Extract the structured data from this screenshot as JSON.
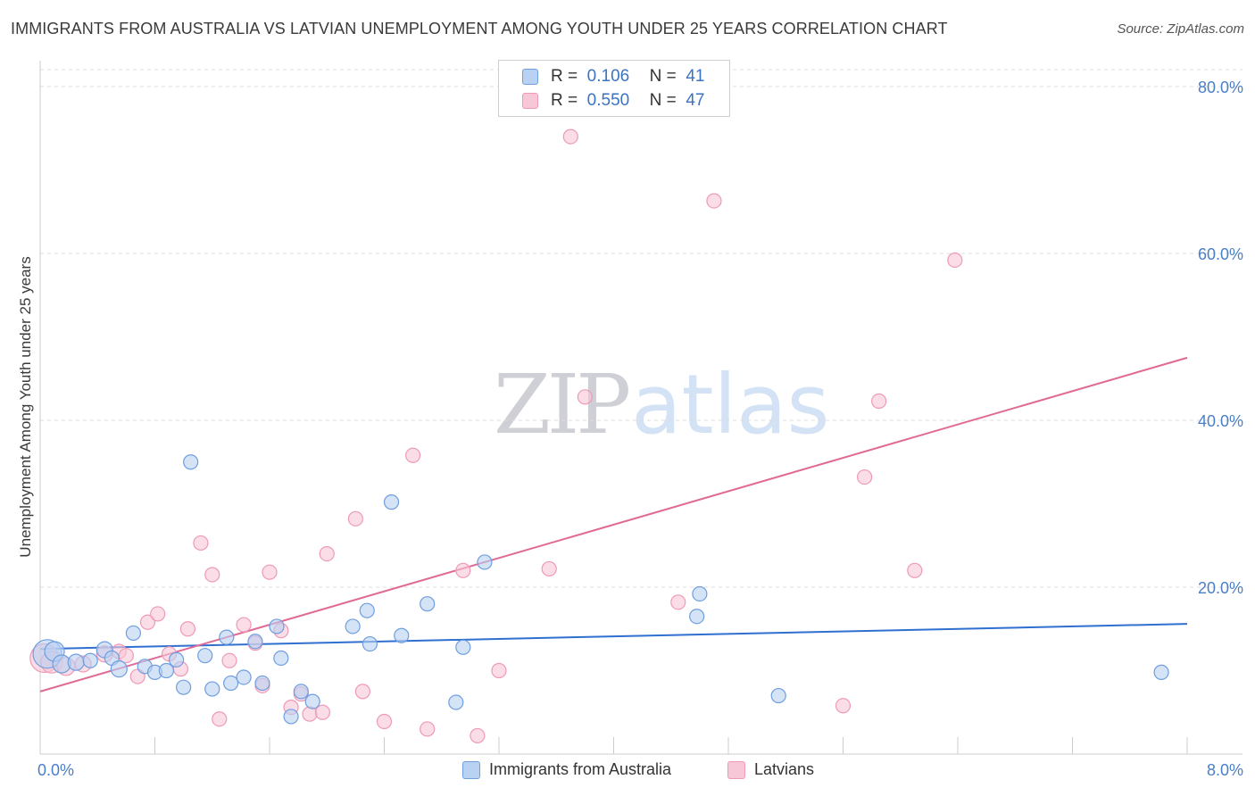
{
  "title": "IMMIGRANTS FROM AUSTRALIA VS LATVIAN UNEMPLOYMENT AMONG YOUTH UNDER 25 YEARS CORRELATION CHART",
  "source": "Source: ZipAtlas.com",
  "watermark": {
    "zip": "ZIP",
    "atlas": "atlas"
  },
  "legend": {
    "rows": [
      {
        "r_label": "R =",
        "r_value": "0.106",
        "n_label": "N =",
        "n_value": "41"
      },
      {
        "r_label": "R =",
        "r_value": "0.550",
        "n_label": "N =",
        "n_value": "47"
      }
    ]
  },
  "colors": {
    "blue_fill": "#b9d1f2",
    "blue_stroke": "#6e9ee0",
    "blue_line": "#2f6fd0",
    "pink_fill": "#f8c7d7",
    "pink_stroke": "#ee9ab6",
    "pink_line": "#e06a95",
    "grid": "#dcdcdc",
    "axis": "#cccccc"
  },
  "chart_data": {
    "type": "scatter",
    "xlabel": "",
    "ylabel": "Unemployment Among Youth under 25 years",
    "xlim": [
      0,
      8
    ],
    "ylim": [
      0,
      80
    ],
    "x_tick_labels": [
      "0.0%",
      "8.0%"
    ],
    "y_tick_labels": [
      "20.0%",
      "40.0%",
      "60.0%",
      "80.0%"
    ],
    "y_ticks": [
      20,
      40,
      60,
      80
    ],
    "x_minor_ticks": [
      0,
      0.8,
      1.6,
      2.4,
      3.2,
      4.0,
      4.8,
      5.6,
      6.4,
      7.2,
      8.0
    ],
    "legend_position": "top-center",
    "series": [
      {
        "name": "Immigrants from Australia",
        "color": "blue",
        "r": 0.106,
        "n": 41,
        "trend": [
          [
            0,
            12.6
          ],
          [
            8,
            15.6
          ]
        ],
        "points": [
          [
            0.05,
            12.0,
            16
          ],
          [
            0.1,
            12.3,
            11
          ],
          [
            0.15,
            10.8,
            10
          ],
          [
            0.25,
            11.0,
            9
          ],
          [
            0.35,
            11.2,
            8
          ],
          [
            0.45,
            12.5,
            9
          ],
          [
            0.5,
            11.5,
            8
          ],
          [
            0.55,
            10.2,
            9
          ],
          [
            0.65,
            14.5,
            8
          ],
          [
            0.73,
            10.5,
            8
          ],
          [
            0.8,
            9.8,
            8
          ],
          [
            0.88,
            10.0,
            8
          ],
          [
            0.95,
            11.3,
            8
          ],
          [
            1.0,
            8.0,
            8
          ],
          [
            1.05,
            35.0,
            8
          ],
          [
            1.15,
            11.8,
            8
          ],
          [
            1.2,
            7.8,
            8
          ],
          [
            1.3,
            14.0,
            8
          ],
          [
            1.33,
            8.5,
            8
          ],
          [
            1.42,
            9.2,
            8
          ],
          [
            1.5,
            13.5,
            8
          ],
          [
            1.55,
            8.5,
            8
          ],
          [
            1.65,
            15.3,
            8
          ],
          [
            1.68,
            11.5,
            8
          ],
          [
            1.75,
            4.5,
            8
          ],
          [
            1.82,
            7.5,
            8
          ],
          [
            1.9,
            6.3,
            8
          ],
          [
            2.18,
            15.3,
            8
          ],
          [
            2.28,
            17.2,
            8
          ],
          [
            2.3,
            13.2,
            8
          ],
          [
            2.45,
            30.2,
            8
          ],
          [
            2.52,
            14.2,
            8
          ],
          [
            2.7,
            18.0,
            8
          ],
          [
            2.9,
            6.2,
            8
          ],
          [
            2.95,
            12.8,
            8
          ],
          [
            3.1,
            23.0,
            8
          ],
          [
            4.58,
            16.5,
            8
          ],
          [
            4.6,
            19.2,
            8
          ],
          [
            5.15,
            7.0,
            8
          ],
          [
            7.82,
            9.8,
            8
          ]
        ]
      },
      {
        "name": "Latvians",
        "color": "pink",
        "r": 0.55,
        "n": 47,
        "trend": [
          [
            0,
            7.5
          ],
          [
            8,
            47.5
          ]
        ],
        "points": [
          [
            0.03,
            11.5,
            16
          ],
          [
            0.08,
            11.0,
            12
          ],
          [
            0.18,
            10.5,
            10
          ],
          [
            0.3,
            10.8,
            9
          ],
          [
            0.45,
            12.0,
            9
          ],
          [
            0.55,
            12.3,
            8
          ],
          [
            0.6,
            11.8,
            8
          ],
          [
            0.68,
            9.3,
            8
          ],
          [
            0.75,
            15.8,
            8
          ],
          [
            0.82,
            16.8,
            8
          ],
          [
            0.9,
            12.0,
            8
          ],
          [
            0.98,
            10.2,
            8
          ],
          [
            1.03,
            15.0,
            8
          ],
          [
            1.12,
            25.3,
            8
          ],
          [
            1.2,
            21.5,
            8
          ],
          [
            1.25,
            4.2,
            8
          ],
          [
            1.32,
            11.2,
            8
          ],
          [
            1.42,
            15.5,
            8
          ],
          [
            1.5,
            13.3,
            8
          ],
          [
            1.55,
            8.2,
            8
          ],
          [
            1.6,
            21.8,
            8
          ],
          [
            1.68,
            14.8,
            8
          ],
          [
            1.75,
            5.6,
            8
          ],
          [
            1.82,
            7.2,
            8
          ],
          [
            1.88,
            4.8,
            8
          ],
          [
            1.97,
            5.0,
            8
          ],
          [
            2.0,
            24.0,
            8
          ],
          [
            2.2,
            28.2,
            8
          ],
          [
            2.25,
            7.5,
            8
          ],
          [
            2.4,
            3.9,
            8
          ],
          [
            2.6,
            35.8,
            8
          ],
          [
            2.7,
            3.0,
            8
          ],
          [
            2.95,
            22.0,
            8
          ],
          [
            3.05,
            2.2,
            8
          ],
          [
            3.2,
            10.0,
            8
          ],
          [
            3.55,
            22.2,
            8
          ],
          [
            3.7,
            74.0,
            8
          ],
          [
            3.8,
            42.8,
            8
          ],
          [
            4.45,
            18.2,
            8
          ],
          [
            4.7,
            66.3,
            8
          ],
          [
            5.6,
            5.8,
            8
          ],
          [
            5.75,
            33.2,
            8
          ],
          [
            5.85,
            42.3,
            8
          ],
          [
            6.1,
            22.0,
            8
          ],
          [
            6.38,
            59.2,
            8
          ]
        ]
      }
    ]
  },
  "bottom_legend": [
    "Immigrants from Australia",
    "Latvians"
  ]
}
